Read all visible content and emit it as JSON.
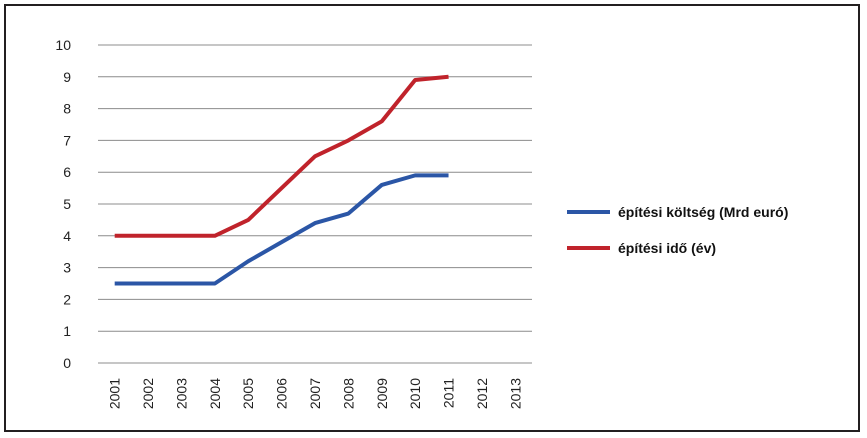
{
  "chart_data": {
    "type": "line",
    "title": "",
    "xlabel": "",
    "ylabel": "",
    "x": [
      "2001",
      "2002",
      "2003",
      "2004",
      "2005",
      "2006",
      "2007",
      "2008",
      "2009",
      "2010",
      "2011",
      "2012",
      "2013"
    ],
    "ylim": [
      0,
      10
    ],
    "yticks": [
      0,
      1,
      2,
      3,
      4,
      5,
      6,
      7,
      8,
      9,
      10
    ],
    "grid": "horizontal",
    "legend_position": "right",
    "series": [
      {
        "name": "építési költség (Mrd euró)",
        "color": "#2b56a6",
        "values": [
          2.5,
          2.5,
          2.5,
          2.5,
          3.2,
          3.8,
          4.4,
          4.7,
          5.6,
          5.9,
          5.9,
          null,
          null
        ]
      },
      {
        "name": "építési idő (év)",
        "color": "#c0232b",
        "values": [
          4.0,
          4.0,
          4.0,
          4.0,
          4.5,
          5.5,
          6.5,
          7.0,
          7.6,
          8.9,
          9.0,
          null,
          null
        ]
      }
    ]
  }
}
